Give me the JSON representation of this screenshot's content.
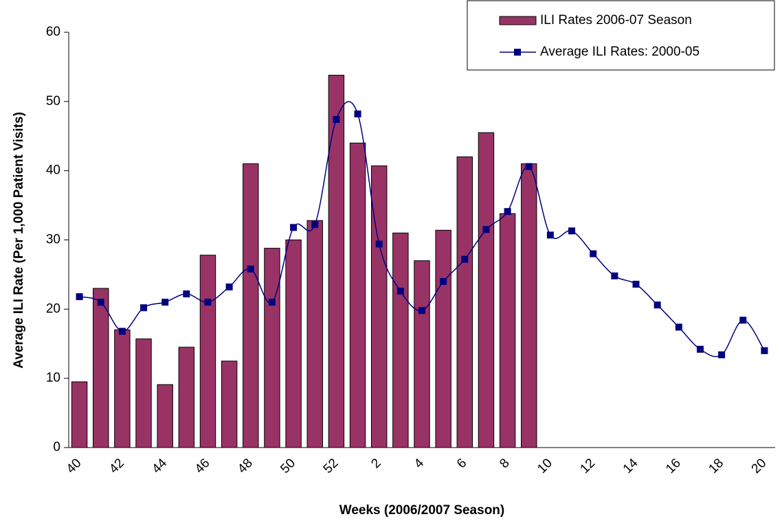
{
  "chart_data": {
    "type": "bar-line",
    "x_label": "Weeks (2006/2007 Season)",
    "y_label": "Average ILI Rate (Per 1,000 Patient Visits)",
    "categories": [
      "40",
      null,
      "42",
      null,
      "44",
      null,
      "46",
      null,
      "48",
      null,
      "50",
      null,
      "52",
      null,
      "2",
      null,
      "4",
      null,
      "6",
      null,
      "8",
      null,
      "10",
      null,
      "12",
      null,
      "14",
      null,
      "16",
      null,
      "18",
      null,
      "20"
    ],
    "ylim": [
      0,
      60
    ],
    "yticks": [
      0,
      10,
      20,
      30,
      40,
      50,
      60
    ],
    "legend": "top-right",
    "series": [
      {
        "name": "ILI Rates 2006-07 Season",
        "type": "bar",
        "color": "#993366",
        "values": [
          9.5,
          23,
          17,
          15.7,
          9.1,
          14.5,
          27.8,
          12.5,
          41,
          28.8,
          30,
          32.8,
          53.8,
          44,
          40.7,
          31,
          27,
          31.4,
          42,
          45.5,
          33.8,
          41,
          null,
          null,
          null,
          null,
          null,
          null,
          null,
          null,
          null,
          null,
          null
        ]
      },
      {
        "name": "Average ILI Rates: 2000-05",
        "type": "line",
        "color": "#000080",
        "values": [
          21.8,
          21,
          16.8,
          20.2,
          21,
          22.2,
          21,
          23.2,
          25.8,
          21,
          31.8,
          32.2,
          47.4,
          48.2,
          29.4,
          22.6,
          19.8,
          24,
          27.2,
          31.5,
          34.1,
          40.6,
          30.7,
          31.3,
          28,
          24.8,
          23.6,
          20.6,
          17.4,
          14.2,
          13.4,
          18.4,
          14
        ]
      }
    ]
  }
}
